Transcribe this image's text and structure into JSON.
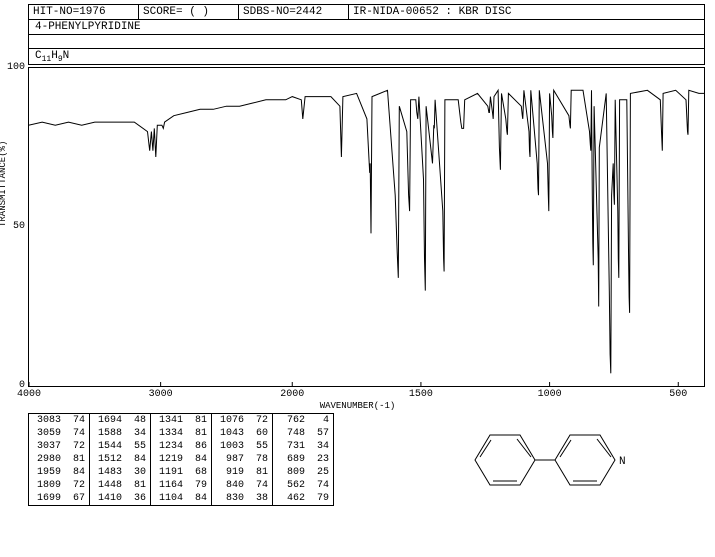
{
  "header": {
    "hit_no": "HIT-NO=1976",
    "score": "SCORE=  (  )",
    "sdbs_no": "SDBS-NO=2442",
    "method": "IR-NIDA-00652 : KBR DISC"
  },
  "title": "4-PHENYLPYRIDINE",
  "formula_html": "C<sub>11</sub>H<sub>9</sub>N",
  "y_axis": {
    "label": "TRANSMITTANCE(%)",
    "ticks": [
      0,
      50,
      100
    ],
    "min": 0,
    "max": 100
  },
  "x_axis": {
    "label": "WAVENUMBER(-1)",
    "ticks": [
      4000,
      3000,
      2000,
      1500,
      1000,
      500
    ],
    "min": 4000,
    "max": 400
  },
  "spectrum": {
    "baseline_start": 82,
    "points": [
      [
        4000,
        82
      ],
      [
        3900,
        83
      ],
      [
        3800,
        82
      ],
      [
        3700,
        83
      ],
      [
        3600,
        82
      ],
      [
        3500,
        83
      ],
      [
        3400,
        83
      ],
      [
        3300,
        83
      ],
      [
        3200,
        83
      ],
      [
        3100,
        80
      ],
      [
        3083,
        74
      ],
      [
        3070,
        80
      ],
      [
        3059,
        74
      ],
      [
        3048,
        81
      ],
      [
        3037,
        72
      ],
      [
        3025,
        82
      ],
      [
        3010,
        82
      ],
      [
        2990,
        82
      ],
      [
        2980,
        81
      ],
      [
        2970,
        83
      ],
      [
        2900,
        85
      ],
      [
        2800,
        86
      ],
      [
        2700,
        87
      ],
      [
        2600,
        87
      ],
      [
        2500,
        88
      ],
      [
        2400,
        88
      ],
      [
        2300,
        89
      ],
      [
        2200,
        90
      ],
      [
        2100,
        90
      ],
      [
        2050,
        90
      ],
      [
        2000,
        91
      ],
      [
        1965,
        90
      ],
      [
        1959,
        84
      ],
      [
        1950,
        91
      ],
      [
        1900,
        91
      ],
      [
        1850,
        91
      ],
      [
        1815,
        88
      ],
      [
        1809,
        72
      ],
      [
        1803,
        91
      ],
      [
        1750,
        92
      ],
      [
        1710,
        84
      ],
      [
        1699,
        67
      ],
      [
        1697,
        70
      ],
      [
        1694,
        48
      ],
      [
        1690,
        91
      ],
      [
        1630,
        93
      ],
      [
        1600,
        60
      ],
      [
        1592,
        42
      ],
      [
        1588,
        34
      ],
      [
        1584,
        88
      ],
      [
        1555,
        80
      ],
      [
        1548,
        60
      ],
      [
        1544,
        55
      ],
      [
        1540,
        90
      ],
      [
        1520,
        90
      ],
      [
        1516,
        86
      ],
      [
        1512,
        84
      ],
      [
        1508,
        91
      ],
      [
        1490,
        65
      ],
      [
        1486,
        40
      ],
      [
        1483,
        30
      ],
      [
        1480,
        88
      ],
      [
        1455,
        70
      ],
      [
        1450,
        82
      ],
      [
        1448,
        81
      ],
      [
        1445,
        90
      ],
      [
        1415,
        55
      ],
      [
        1412,
        40
      ],
      [
        1410,
        36
      ],
      [
        1407,
        90
      ],
      [
        1355,
        90
      ],
      [
        1345,
        83
      ],
      [
        1341,
        81
      ],
      [
        1334,
        81
      ],
      [
        1330,
        90
      ],
      [
        1280,
        92
      ],
      [
        1240,
        88
      ],
      [
        1236,
        86
      ],
      [
        1234,
        86
      ],
      [
        1230,
        91
      ],
      [
        1222,
        86
      ],
      [
        1219,
        84
      ],
      [
        1216,
        91
      ],
      [
        1200,
        93
      ],
      [
        1195,
        75
      ],
      [
        1191,
        68
      ],
      [
        1187,
        92
      ],
      [
        1170,
        84
      ],
      [
        1166,
        80
      ],
      [
        1164,
        79
      ],
      [
        1160,
        92
      ],
      [
        1110,
        88
      ],
      [
        1106,
        85
      ],
      [
        1104,
        84
      ],
      [
        1100,
        93
      ],
      [
        1080,
        80
      ],
      [
        1078,
        74
      ],
      [
        1076,
        72
      ],
      [
        1073,
        93
      ],
      [
        1048,
        70
      ],
      [
        1045,
        62
      ],
      [
        1043,
        60
      ],
      [
        1040,
        93
      ],
      [
        1008,
        70
      ],
      [
        1005,
        60
      ],
      [
        1003,
        55
      ],
      [
        1000,
        92
      ],
      [
        992,
        85
      ],
      [
        989,
        80
      ],
      [
        987,
        78
      ],
      [
        984,
        93
      ],
      [
        925,
        85
      ],
      [
        921,
        82
      ],
      [
        919,
        81
      ],
      [
        916,
        93
      ],
      [
        870,
        93
      ],
      [
        845,
        80
      ],
      [
        842,
        76
      ],
      [
        840,
        74
      ],
      [
        837,
        93
      ],
      [
        834,
        60
      ],
      [
        832,
        45
      ],
      [
        830,
        38
      ],
      [
        827,
        88
      ],
      [
        811,
        40
      ],
      [
        809,
        25
      ],
      [
        807,
        75
      ],
      [
        780,
        92
      ],
      [
        768,
        30
      ],
      [
        765,
        10
      ],
      [
        762,
        4
      ],
      [
        759,
        60
      ],
      [
        753,
        70
      ],
      [
        750,
        60
      ],
      [
        748,
        57
      ],
      [
        745,
        90
      ],
      [
        735,
        55
      ],
      [
        733,
        40
      ],
      [
        731,
        34
      ],
      [
        728,
        90
      ],
      [
        700,
        90
      ],
      [
        693,
        40
      ],
      [
        691,
        28
      ],
      [
        689,
        23
      ],
      [
        686,
        92
      ],
      [
        620,
        93
      ],
      [
        570,
        90
      ],
      [
        565,
        80
      ],
      [
        562,
        74
      ],
      [
        559,
        92
      ],
      [
        510,
        93
      ],
      [
        470,
        90
      ],
      [
        464,
        80
      ],
      [
        462,
        79
      ],
      [
        459,
        93
      ],
      [
        420,
        92
      ],
      [
        400,
        92
      ]
    ]
  },
  "peak_table": [
    [
      [
        3083,
        74
      ],
      [
        3059,
        74
      ],
      [
        3037,
        72
      ],
      [
        2980,
        81
      ],
      [
        1959,
        84
      ],
      [
        1809,
        72
      ],
      [
        1699,
        67
      ]
    ],
    [
      [
        1694,
        48
      ],
      [
        1588,
        34
      ],
      [
        1544,
        55
      ],
      [
        1512,
        84
      ],
      [
        1483,
        30
      ],
      [
        1448,
        81
      ],
      [
        1410,
        36
      ]
    ],
    [
      [
        1341,
        81
      ],
      [
        1334,
        81
      ],
      [
        1234,
        86
      ],
      [
        1219,
        84
      ],
      [
        1191,
        68
      ],
      [
        1164,
        79
      ],
      [
        1104,
        84
      ]
    ],
    [
      [
        1076,
        72
      ],
      [
        1043,
        60
      ],
      [
        1003,
        55
      ],
      [
        987,
        78
      ],
      [
        919,
        81
      ],
      [
        840,
        74
      ],
      [
        830,
        38
      ]
    ],
    [
      [
        762,
        4
      ],
      [
        748,
        57
      ],
      [
        731,
        34
      ],
      [
        689,
        23
      ],
      [
        809,
        25
      ],
      [
        562,
        74
      ],
      [
        462,
        79
      ]
    ]
  ],
  "style": {
    "line_color": "#000000",
    "background": "#ffffff",
    "font": "Courier New"
  }
}
